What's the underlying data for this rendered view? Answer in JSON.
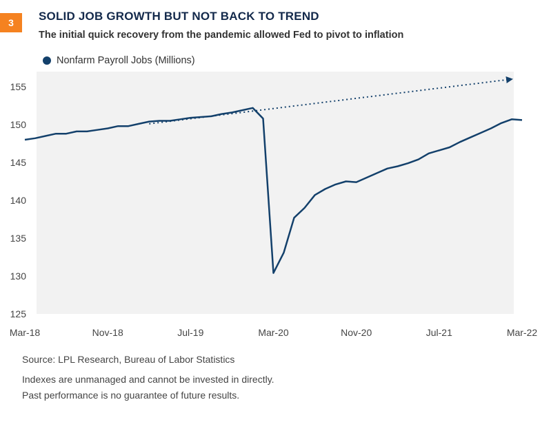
{
  "badge": "3",
  "title": "SOLID JOB GROWTH BUT NOT BACK TO TREND",
  "subtitle": "The initial quick recovery from the pandemic allowed Fed to pivot to inflation",
  "footer": {
    "source": "Source: LPL Research, Bureau of Labor Statistics",
    "disclaimer1": "Indexes are unmanaged and cannot be invested in directly.",
    "disclaimer2": "Past performance is no guarantee of future results."
  },
  "colors": {
    "series": "#13406b",
    "plot_bg": "#f2f2f2",
    "badge": "#f58220",
    "title": "#13294b"
  },
  "chart_data": {
    "type": "line",
    "xlim": [
      "2018-03",
      "2022-03"
    ],
    "ylim": [
      125,
      157
    ],
    "yticks": [
      125,
      130,
      135,
      140,
      145,
      150,
      155
    ],
    "xtick_labels": [
      "Mar-18",
      "Nov-18",
      "Jul-19",
      "Mar-20",
      "Nov-20",
      "Jul-21",
      "Mar-22"
    ],
    "xtick_positions": [
      "2018-03",
      "2018-11",
      "2019-07",
      "2020-03",
      "2020-11",
      "2021-07",
      "2022-03"
    ],
    "grid": false,
    "legend_position": "top-left",
    "series": [
      {
        "name": "Nonfarm Payroll Jobs (Millions)",
        "style": "solid",
        "x": [
          "2018-03",
          "2018-04",
          "2018-05",
          "2018-06",
          "2018-07",
          "2018-08",
          "2018-09",
          "2018-10",
          "2018-11",
          "2018-12",
          "2019-01",
          "2019-02",
          "2019-03",
          "2019-04",
          "2019-05",
          "2019-06",
          "2019-07",
          "2019-08",
          "2019-09",
          "2019-10",
          "2019-11",
          "2019-12",
          "2020-01",
          "2020-02",
          "2020-03",
          "2020-04",
          "2020-05",
          "2020-06",
          "2020-07",
          "2020-08",
          "2020-09",
          "2020-10",
          "2020-11",
          "2020-12",
          "2021-01",
          "2021-02",
          "2021-03",
          "2021-04",
          "2021-05",
          "2021-06",
          "2021-07",
          "2021-08",
          "2021-09",
          "2021-10",
          "2021-11",
          "2021-12",
          "2022-01",
          "2022-02",
          "2022-03"
        ],
        "values": [
          148.0,
          148.2,
          148.5,
          148.8,
          148.8,
          149.1,
          149.1,
          149.3,
          149.5,
          149.8,
          149.8,
          150.1,
          150.4,
          150.5,
          150.5,
          150.7,
          150.9,
          151.0,
          151.1,
          151.4,
          151.6,
          151.9,
          152.2,
          150.8,
          130.4,
          133.1,
          137.7,
          139.0,
          140.7,
          141.5,
          142.1,
          142.5,
          142.4,
          143.0,
          143.6,
          144.2,
          144.5,
          144.9,
          145.4,
          146.2,
          146.6,
          147.0,
          147.7,
          148.3,
          148.9,
          149.5,
          150.2,
          150.7,
          150.6
        ]
      },
      {
        "style": "dotted-arrow",
        "x": [
          "2019-03",
          "2022-02"
        ],
        "values": [
          150.1,
          156.0
        ]
      }
    ]
  }
}
